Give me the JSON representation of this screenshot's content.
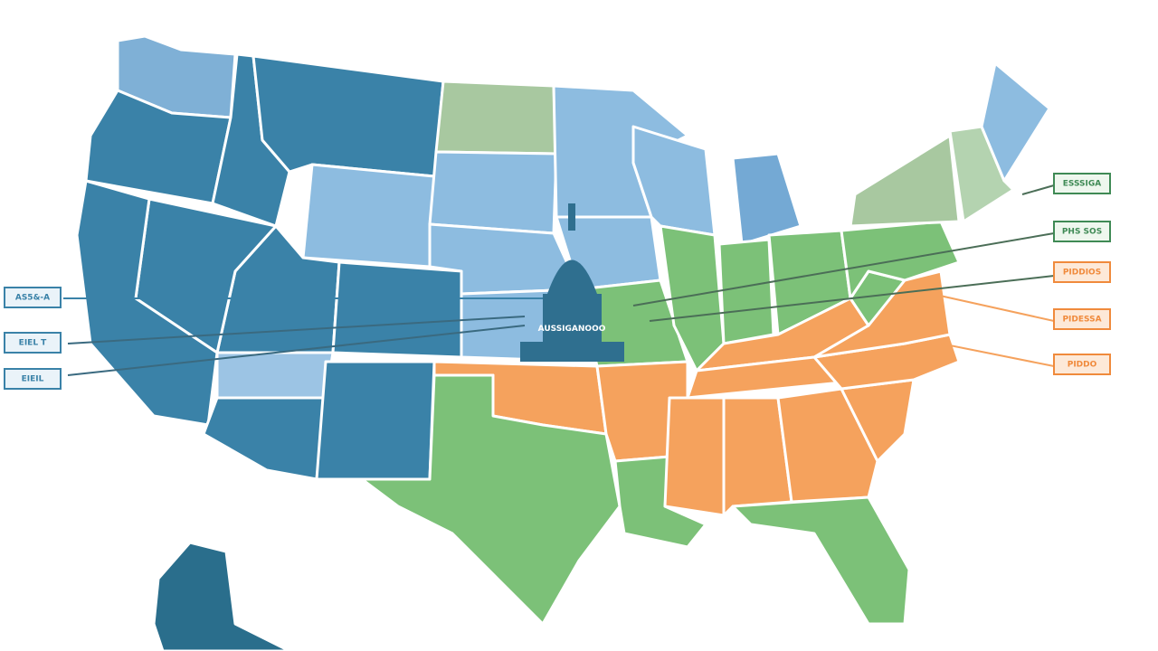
{
  "capitol_label": "AUSSIGANOOO",
  "left_labels": [
    "AS5&-A",
    "EIEL T",
    "EIEIL"
  ],
  "right_labels": [
    "ESSSIGA",
    "PHS SOS",
    "PIDDIOS",
    "PIDESSA",
    "PIDDO"
  ]
}
